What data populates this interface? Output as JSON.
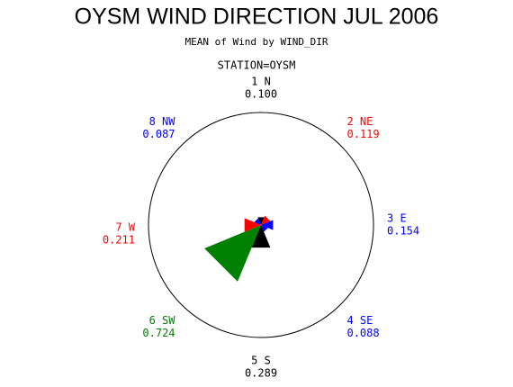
{
  "chart_data": {
    "type": "star",
    "title": "OYSM WIND DIRECTION JUL 2006",
    "subtitle": "MEAN of Wind by WIND_DIR",
    "group_label": "STATION=OYSM",
    "categories": [
      "1 N",
      "2 NE",
      "3 E",
      "4 SE",
      "5 S",
      "6 SW",
      "7 W",
      "8 NW"
    ],
    "values": [
      0.1,
      0.119,
      0.154,
      0.088,
      0.289,
      0.724,
      0.211,
      0.087
    ],
    "value_labels": [
      "0.100",
      "0.119",
      "0.154",
      "0.088",
      "0.289",
      "0.724",
      "0.211",
      "0.087"
    ],
    "colors": [
      "#000000",
      "#ff0000",
      "#0000ff",
      "#0000ff",
      "#000000",
      "#008000",
      "#ff0000",
      "#0000ff"
    ]
  }
}
